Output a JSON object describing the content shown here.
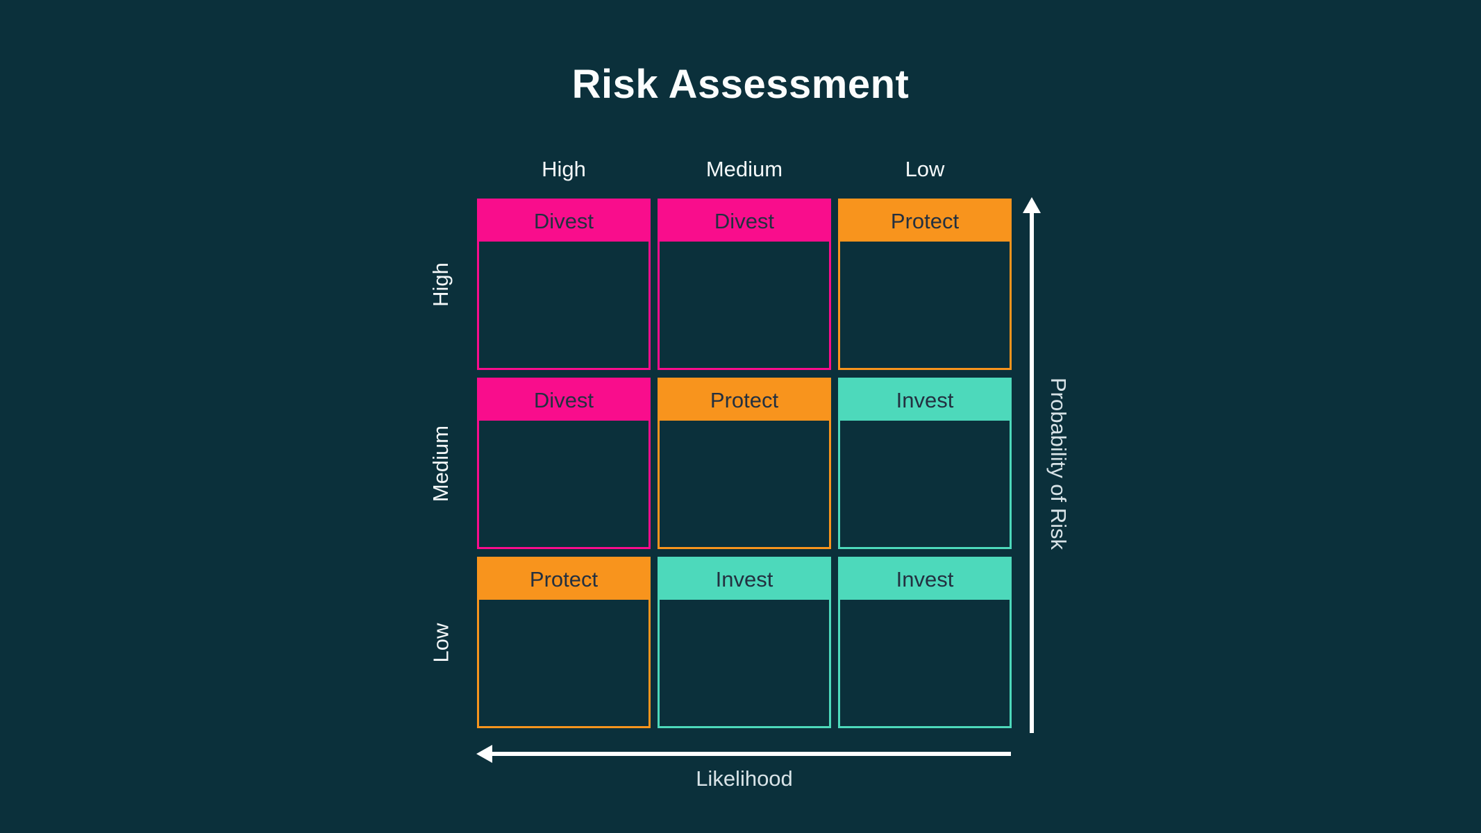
{
  "title": "Risk Assessment",
  "colors": {
    "background": "#0B303B",
    "pink": "#F90D8C",
    "orange": "#F8941D",
    "teal": "#4DD9BB",
    "cell_header_text": "#233040",
    "grid_label_text": "#F4F8F9",
    "axis_label_text": "#D8E3E7",
    "arrow": "#FFFFFF",
    "title_text": "#FBFDFD"
  },
  "matrix": {
    "column_labels": [
      "High",
      "Medium",
      "Low"
    ],
    "row_labels": [
      "High",
      "Medium",
      "Low"
    ],
    "cells": [
      [
        {
          "label": "Divest",
          "color": "pink"
        },
        {
          "label": "Divest",
          "color": "pink"
        },
        {
          "label": "Protect",
          "color": "orange"
        }
      ],
      [
        {
          "label": "Divest",
          "color": "pink"
        },
        {
          "label": "Protect",
          "color": "orange"
        },
        {
          "label": "Invest",
          "color": "teal"
        }
      ],
      [
        {
          "label": "Protect",
          "color": "orange"
        },
        {
          "label": "Invest",
          "color": "teal"
        },
        {
          "label": "Invest",
          "color": "teal"
        }
      ]
    ]
  },
  "axes": {
    "x_label": "Likelihood",
    "y_label": "Probability of Risk"
  }
}
